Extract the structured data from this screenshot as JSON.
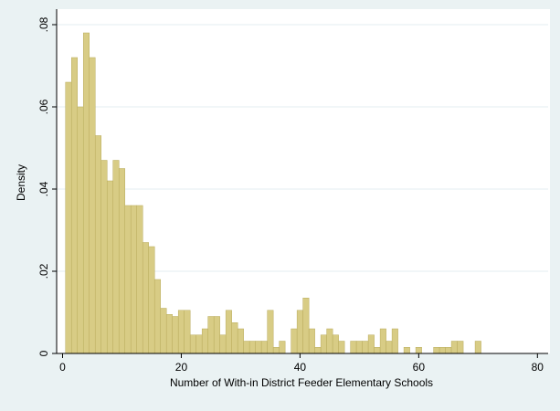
{
  "chart_data": {
    "type": "histogram",
    "x_label": "Number of With-in District Feeder Elementary Schools",
    "y_label": "Density",
    "bins": [
      0.5,
      1.5,
      2.5,
      3.5,
      4.5,
      5.5,
      6.5,
      7.5,
      8.5,
      9.5,
      10.5,
      11.5,
      12.5,
      13.5,
      14.5,
      15.5,
      16.5,
      17.5,
      18.5,
      19.5,
      20.5,
      21.5,
      22.5,
      23.5,
      24.5,
      25.5,
      26.5,
      27.5,
      28.5,
      29.5,
      30.5,
      31.5,
      32.5,
      33.5,
      34.5,
      35.5,
      36.5,
      37.5,
      38.5,
      39.5,
      40.5,
      41.5,
      42.5,
      43.5,
      44.5,
      45.5,
      46.5,
      47.5,
      48.5,
      49.5,
      50.5,
      51.5,
      52.5,
      53.5,
      54.5,
      55.5,
      56.5,
      57.5,
      58.5,
      59.5,
      60.5,
      61.5,
      62.5,
      63.5,
      64.5,
      65.5,
      66.5,
      67.5,
      68.5,
      69.5,
      70.5
    ],
    "values": [
      0.066,
      0.072,
      0.06,
      0.078,
      0.072,
      0.053,
      0.047,
      0.042,
      0.047,
      0.045,
      0.036,
      0.036,
      0.036,
      0.027,
      0.026,
      0.018,
      0.011,
      0.0095,
      0.009,
      0.0105,
      0.0105,
      0.0045,
      0.0045,
      0.006,
      0.009,
      0.009,
      0.0045,
      0.0105,
      0.0075,
      0.006,
      0.003,
      0.003,
      0.003,
      0.003,
      0.0105,
      0.0015,
      0.003,
      0,
      0.006,
      0.0105,
      0.0135,
      0.006,
      0.0015,
      0.0045,
      0.006,
      0.0045,
      0.003,
      0,
      0.003,
      0.003,
      0.003,
      0.0045,
      0.0015,
      0.006,
      0.003,
      0.006,
      0,
      0.0015,
      0,
      0.0015,
      0,
      0,
      0.0015,
      0.0015,
      0.0015,
      0.003,
      0.003,
      0,
      0,
      0.003
    ],
    "color": "#d8cc85",
    "xlim": [
      -1,
      81.8
    ],
    "xticks": [
      0,
      20,
      40,
      60,
      80
    ],
    "ylim": [
      0,
      0.082
    ],
    "yticks": [
      0,
      {
        "value": 0.02,
        "label": ".02"
      },
      {
        "value": 0.04,
        "label": ".04"
      },
      {
        "value": 0.06,
        "label": ".06"
      },
      {
        "value": 0.08,
        "label": ".08"
      }
    ],
    "grid": true
  }
}
